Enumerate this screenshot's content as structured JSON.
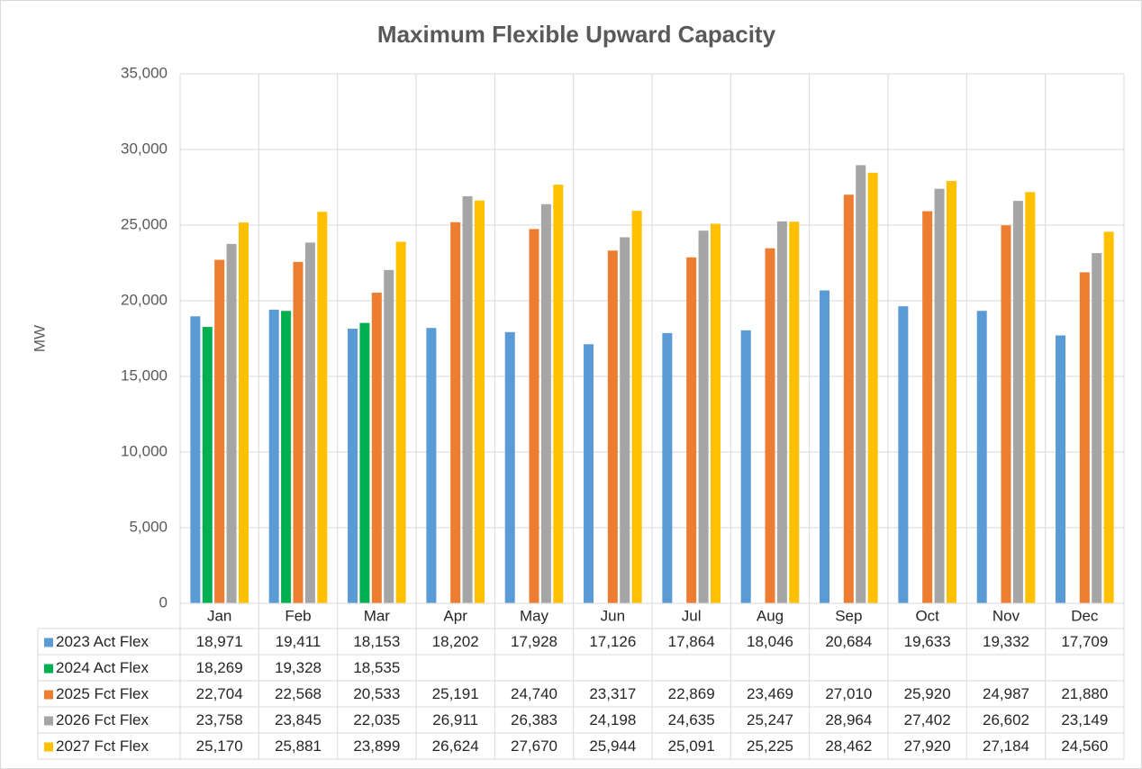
{
  "chart_data": {
    "type": "bar",
    "title": "Maximum Flexible Upward Capacity",
    "y_label": "MW",
    "categories": [
      "Jan",
      "Feb",
      "Mar",
      "Apr",
      "May",
      "Jun",
      "Jul",
      "Aug",
      "Sep",
      "Oct",
      "Nov",
      "Dec"
    ],
    "series": [
      {
        "name": "2023 Act Flex",
        "color": "#5b9bd5",
        "values": [
          18971,
          19411,
          18153,
          18202,
          17928,
          17126,
          17864,
          18046,
          20684,
          19633,
          19332,
          17709
        ],
        "value_labels": [
          "18,971",
          "19,411",
          "18,153",
          "18,202",
          "17,928",
          "17,126",
          "17,864",
          "18,046",
          "20,684",
          "19,633",
          "19,332",
          "17,709"
        ]
      },
      {
        "name": "2024 Act Flex",
        "color": "#00b050",
        "values": [
          18269,
          19328,
          18535,
          null,
          null,
          null,
          null,
          null,
          null,
          null,
          null,
          null
        ],
        "value_labels": [
          "18,269",
          "19,328",
          "18,535",
          null,
          null,
          null,
          null,
          null,
          null,
          null,
          null,
          null
        ]
      },
      {
        "name": "2025 Fct Flex",
        "color": "#ed7d31",
        "values": [
          22704,
          22568,
          20533,
          25191,
          24740,
          23317,
          22869,
          23469,
          27010,
          25920,
          24987,
          21880
        ],
        "value_labels": [
          "22,704",
          "22,568",
          "20,533",
          "25,191",
          "24,740",
          "23,317",
          "22,869",
          "23,469",
          "27,010",
          "25,920",
          "24,987",
          "21,880"
        ]
      },
      {
        "name": "2026 Fct Flex",
        "color": "#a5a5a5",
        "values": [
          23758,
          23845,
          22035,
          26911,
          26383,
          24198,
          24635,
          25247,
          28964,
          27402,
          26602,
          23149
        ],
        "value_labels": [
          "23,758",
          "23,845",
          "22,035",
          "26,911",
          "26,383",
          "24,198",
          "24,635",
          "25,247",
          "28,964",
          "27,402",
          "26,602",
          "23,149"
        ]
      },
      {
        "name": "2027 Fct Flex",
        "color": "#ffc000",
        "values": [
          25170,
          25881,
          23899,
          26624,
          27670,
          25944,
          25091,
          25225,
          28462,
          27920,
          27184,
          24560
        ],
        "value_labels": [
          "25,170",
          "25,881",
          "23,899",
          "26,624",
          "27,670",
          "25,944",
          "25,091",
          "25,225",
          "28,462",
          "27,920",
          "27,184",
          "24,560"
        ]
      }
    ],
    "ylim": [
      0,
      35000
    ],
    "yticks": [
      0,
      {
        "value": 5000,
        "label": "5,000"
      },
      {
        "value": 10000,
        "label": "10,000"
      },
      {
        "value": 15000,
        "label": "15,000"
      },
      {
        "value": 20000,
        "label": "20,000"
      },
      {
        "value": 25000,
        "label": "25,000"
      },
      {
        "value": 30000,
        "label": "30,000"
      },
      {
        "value": 35000,
        "label": "35,000"
      }
    ],
    "grid": true
  }
}
